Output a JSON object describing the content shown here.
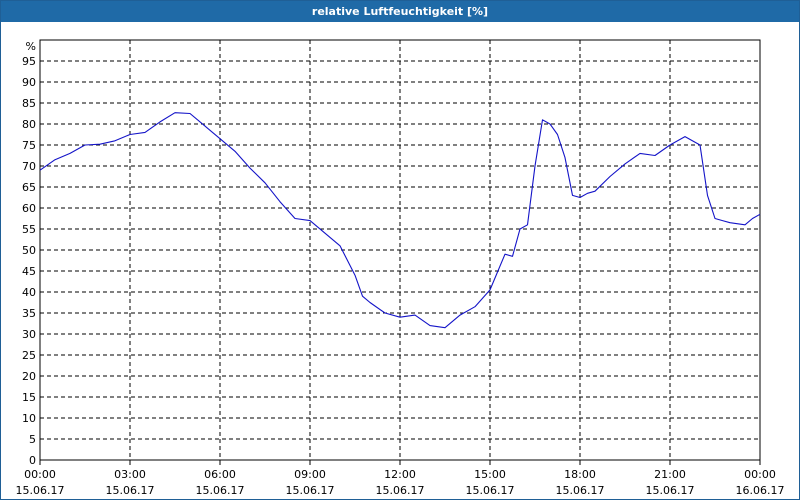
{
  "window": {
    "title": "relative Luftfeuchtigkeit [%]"
  },
  "colors": {
    "titlebar": "#1f6aa7",
    "line": "#1414c8",
    "grid": "#000000"
  },
  "chart_data": {
    "type": "line",
    "title": "relative Luftfeuchtigkeit [%]",
    "ylabel": "%",
    "xlabel": "",
    "ylim": [
      0,
      100
    ],
    "y_ticks": [
      0,
      5,
      10,
      15,
      20,
      25,
      30,
      35,
      40,
      45,
      50,
      55,
      60,
      65,
      70,
      75,
      80,
      85,
      90,
      95
    ],
    "xlim": [
      "15.06.17 00:00",
      "16.06.17 00:00"
    ],
    "x_ticks": [
      {
        "time": "00:00",
        "date": "15.06.17"
      },
      {
        "time": "03:00",
        "date": "15.06.17"
      },
      {
        "time": "06:00",
        "date": "15.06.17"
      },
      {
        "time": "09:00",
        "date": "15.06.17"
      },
      {
        "time": "12:00",
        "date": "15.06.17"
      },
      {
        "time": "15:00",
        "date": "15.06.17"
      },
      {
        "time": "18:00",
        "date": "15.06.17"
      },
      {
        "time": "21:00",
        "date": "15.06.17"
      },
      {
        "time": "00:00",
        "date": "16.06.17"
      }
    ],
    "grid": true,
    "series": [
      {
        "x": [
          "15.06.17 00:00",
          "15.06.17 00:30",
          "15.06.17 01:00",
          "15.06.17 01:30",
          "15.06.17 02:00",
          "15.06.17 02:30",
          "15.06.17 03:00",
          "15.06.17 03:30",
          "15.06.17 04:00",
          "15.06.17 04:30",
          "15.06.17 05:00",
          "15.06.17 05:30",
          "15.06.17 06:00",
          "15.06.17 06:30",
          "15.06.17 07:00",
          "15.06.17 07:30",
          "15.06.17 08:00",
          "15.06.17 08:30",
          "15.06.17 09:00",
          "15.06.17 09:30",
          "15.06.17 10:00",
          "15.06.17 10:30",
          "15.06.17 10:45",
          "15.06.17 11:00",
          "15.06.17 11:30",
          "15.06.17 12:00",
          "15.06.17 12:30",
          "15.06.17 13:00",
          "15.06.17 13:30",
          "15.06.17 14:00",
          "15.06.17 14:30",
          "15.06.17 15:00",
          "15.06.17 15:30",
          "15.06.17 15:45",
          "15.06.17 16:00",
          "15.06.17 16:15",
          "15.06.17 16:30",
          "15.06.17 16:45",
          "15.06.17 17:00",
          "15.06.17 17:15",
          "15.06.17 17:30",
          "15.06.17 17:45",
          "15.06.17 18:00",
          "15.06.17 18:15",
          "15.06.17 18:30",
          "15.06.17 19:00",
          "15.06.17 19:30",
          "15.06.17 20:00",
          "15.06.17 20:30",
          "15.06.17 21:00",
          "15.06.17 21:30",
          "15.06.17 22:00",
          "15.06.17 22:15",
          "15.06.17 22:30",
          "15.06.17 22:45",
          "15.06.17 23:00",
          "15.06.17 23:30",
          "15.06.17 23:45",
          "16.06.17 00:00"
        ],
        "values": [
          69,
          71.5,
          73,
          75,
          75.2,
          76,
          77.5,
          78,
          80.5,
          82.7,
          82.5,
          79.5,
          76.5,
          73.5,
          69.5,
          66,
          61.5,
          57.5,
          57,
          54,
          51,
          44,
          39,
          37.5,
          35,
          34,
          34.5,
          32,
          31.5,
          34.5,
          36.5,
          40.5,
          49,
          48.5,
          55,
          56,
          70,
          81,
          80,
          77.5,
          72,
          63,
          62.5,
          63.5,
          64,
          67.5,
          70.5,
          73,
          72.5,
          75,
          77,
          75,
          63,
          57.5,
          57,
          56.5,
          56,
          57.5,
          58.5
        ]
      }
    ]
  }
}
